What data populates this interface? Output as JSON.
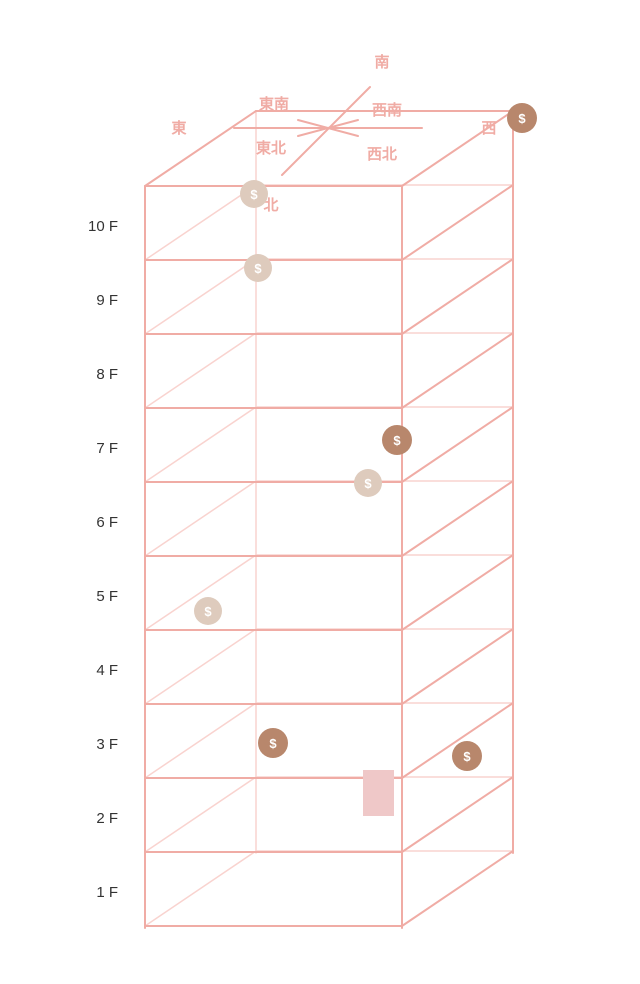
{
  "colors": {
    "line": "#f0aca5",
    "line_faint": "#f9d3cf",
    "text": "#333333",
    "coin_dark": "#b8876c",
    "coin_light": "#decbbd",
    "marker": "#efc8c8"
  },
  "directions": {
    "south": "南",
    "east": "東",
    "west": "西",
    "north": "北",
    "southeast": "東南",
    "southwest": "西南",
    "northeast": "東北",
    "northwest": "西北"
  },
  "floors": [
    "10 F",
    "9 F",
    "8 F",
    "7 F",
    "6 F",
    "5 F",
    "4 F",
    "3 F",
    "2 F",
    "1 F"
  ],
  "coins": [
    {
      "id": "top-west",
      "style": "dark",
      "symbol": "$"
    },
    {
      "id": "floor10-a",
      "style": "light",
      "symbol": "$"
    },
    {
      "id": "floor9-a",
      "style": "light",
      "symbol": "$"
    },
    {
      "id": "floor7-a",
      "style": "dark",
      "symbol": "$"
    },
    {
      "id": "floor7-b",
      "style": "light",
      "symbol": "$"
    },
    {
      "id": "floor5-a",
      "style": "light",
      "symbol": "$"
    },
    {
      "id": "floor3-a",
      "style": "dark",
      "symbol": "$"
    },
    {
      "id": "floor3-b",
      "style": "dark",
      "symbol": "$"
    }
  ]
}
